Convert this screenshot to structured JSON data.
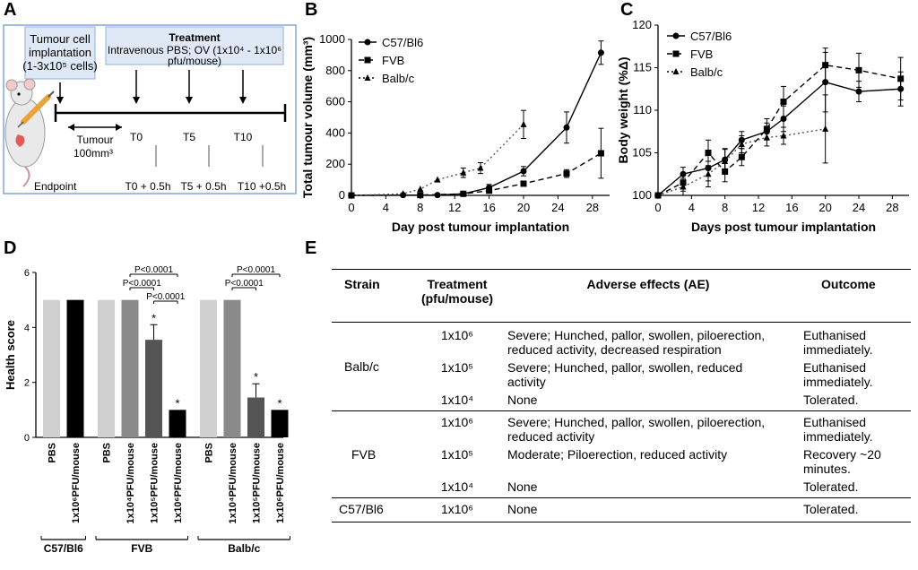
{
  "panels": {
    "a": "A",
    "b": "B",
    "c": "C",
    "d": "D",
    "e": "E"
  },
  "panel_a": {
    "implant_line1": "Tumour cell",
    "implant_line2": "implantation",
    "implant_line3": "(1-3x10⁵ cells)",
    "treat_title": "Treatment",
    "treat_line1": "Intravenous PBS; OV (1x10⁴ - 1x10⁶",
    "treat_line2": "pfu/mouse)",
    "tumour_line1": "Tumour",
    "tumour_line2": "100mm³",
    "t0": "T0",
    "t5": "T5",
    "t10": "T10",
    "t0b": "T0 + 0.5h",
    "t5b": "T5 + 0.5h",
    "t10b": "T10 +0.5h",
    "endpoint": "Endpoint"
  },
  "colors": {
    "box_fill": "#dfe9f5",
    "box_border": "#8fb0d8",
    "frame": "#7fa8d8",
    "mouse": "#e9e9e9",
    "syringe": "#e8a33a",
    "bar_light": "#d0d0d0",
    "bar_mid": "#8a8a8a",
    "bar_dark": "#555555",
    "bar_black": "#000000"
  },
  "chart_data": [
    {
      "id": "B",
      "type": "line",
      "title": "",
      "xlabel": "Day post tumour implantation",
      "ylabel": "Total tumour volume (mm³)",
      "xlim": [
        0,
        30
      ],
      "ylim": [
        0,
        1000
      ],
      "xticks": [
        0,
        4,
        8,
        12,
        16,
        20,
        24,
        28
      ],
      "yticks": [
        0,
        200,
        400,
        600,
        800,
        1000
      ],
      "legend_position": "top-left",
      "series": [
        {
          "name": "C57/Bl6",
          "style": "solid",
          "marker": "circle",
          "x": [
            0,
            6,
            10,
            13,
            16,
            20,
            25,
            29
          ],
          "y": [
            0,
            2,
            2,
            10,
            50,
            155,
            435,
            915
          ],
          "err": [
            0,
            0,
            0,
            0,
            20,
            30,
            100,
            75
          ]
        },
        {
          "name": "FVB",
          "style": "dashed",
          "marker": "square",
          "x": [
            0,
            8,
            13,
            16,
            20,
            25,
            29
          ],
          "y": [
            0,
            2,
            10,
            30,
            75,
            140,
            270
          ],
          "err": [
            0,
            0,
            0,
            0,
            10,
            25,
            160
          ]
        },
        {
          "name": "Balb/c",
          "style": "dotted",
          "marker": "triangle",
          "x": [
            0,
            6,
            8,
            10,
            13,
            15,
            20
          ],
          "y": [
            0,
            10,
            40,
            100,
            145,
            175,
            455
          ],
          "err": [
            0,
            0,
            0,
            0,
            30,
            35,
            90
          ]
        }
      ]
    },
    {
      "id": "C",
      "type": "line",
      "title": "",
      "xlabel": "Days post tumour implantation",
      "ylabel": "Body weight (%Δ)",
      "xlim": [
        0,
        30
      ],
      "ylim": [
        100,
        120
      ],
      "xticks": [
        0,
        4,
        8,
        12,
        16,
        20,
        24,
        28
      ],
      "yticks": [
        100,
        105,
        110,
        115,
        120
      ],
      "legend_position": "top-left",
      "series": [
        {
          "name": "C57/Bl6",
          "style": "solid",
          "marker": "circle",
          "x": [
            0,
            3,
            6,
            8,
            10,
            13,
            15,
            20,
            24,
            29
          ],
          "y": [
            100,
            102.5,
            103.2,
            104.2,
            106.5,
            107.5,
            109,
            113.3,
            112.2,
            112.5
          ],
          "err": [
            0,
            0.8,
            1.5,
            1.2,
            1,
            1,
            1.5,
            3.5,
            1.2,
            2
          ]
        },
        {
          "name": "FVB",
          "style": "dashed",
          "marker": "square",
          "x": [
            0,
            3,
            6,
            8,
            10,
            13,
            15,
            20,
            24,
            29
          ],
          "y": [
            100,
            101.5,
            105,
            102.8,
            104.5,
            107.8,
            111,
            115.3,
            114.7,
            113.7
          ],
          "err": [
            0,
            1,
            1.5,
            1.2,
            1,
            1.2,
            1.8,
            2,
            2,
            2.5
          ]
        },
        {
          "name": "Balb/c",
          "style": "dotted",
          "marker": "triangle",
          "x": [
            0,
            3,
            6,
            8,
            10,
            13,
            15,
            20
          ],
          "y": [
            100,
            101,
            102.5,
            104,
            106,
            106.8,
            107,
            107.8
          ],
          "err": [
            0,
            1,
            1.5,
            1.5,
            1,
            1,
            1,
            4
          ]
        }
      ]
    },
    {
      "id": "D",
      "type": "bar",
      "ylabel": "Health score",
      "ylim": [
        0,
        6
      ],
      "yticks": [
        0,
        2,
        4,
        6
      ],
      "categories": [
        "PBS",
        "1x10⁶PFU/mouse",
        "PBS",
        "1x10⁴PFU/mouse",
        "1x10⁵PFU/mouse",
        "1x10⁶PFU/mouse",
        "PBS",
        "1x10⁴PFU/mouse",
        "1x10⁵PFU/mouse",
        "1x10⁶PFU/mouse"
      ],
      "values": [
        5,
        5,
        5,
        5,
        3.55,
        1,
        5,
        5,
        1.45,
        1
      ],
      "errors": [
        0,
        0,
        0,
        0,
        0.55,
        0,
        0,
        0,
        0.5,
        0
      ],
      "bar_colors": [
        "#d0d0d0",
        "#000000",
        "#d0d0d0",
        "#8a8a8a",
        "#555555",
        "#000000",
        "#d0d0d0",
        "#8a8a8a",
        "#555555",
        "#000000"
      ],
      "stars": [
        false,
        false,
        false,
        false,
        true,
        true,
        false,
        false,
        true,
        true
      ],
      "groups": [
        {
          "name": "C57/Bl6",
          "from": 0,
          "to": 1
        },
        {
          "name": "FVB",
          "from": 2,
          "to": 5
        },
        {
          "name": "Balb/c",
          "from": 6,
          "to": 9
        }
      ],
      "annotations": [
        {
          "text": "P<0.0001",
          "from": 3,
          "to": 5,
          "level": 0
        },
        {
          "text": "P<0.0001",
          "from": 3,
          "to": 4,
          "level": 1
        },
        {
          "text": "P<0.0001",
          "from": 4,
          "to": 5,
          "level": 2
        },
        {
          "text": "P<0.0001",
          "from": 7,
          "to": 9,
          "level": 0
        },
        {
          "text": "P<0.0001",
          "from": 7,
          "to": 8,
          "level": 1
        }
      ]
    }
  ],
  "table": {
    "headers": {
      "strain": "Strain",
      "treatment1": "Treatment",
      "treatment2": "(pfu/mouse)",
      "ae": "Adverse effects (AE)",
      "outcome": "Outcome"
    },
    "rows": [
      {
        "strain": "Balb/c",
        "dose": "1x10⁶",
        "ae1": "Severe; Hunched, pallor, swollen, piloerection,",
        "ae2": "reduced activity, decreased respiration",
        "out1": "Euthanised",
        "out2": "immediately."
      },
      {
        "strain": "",
        "dose": "1x10⁵",
        "ae1": "Severe; Hunched, pallor, swollen, reduced",
        "ae2": "activity",
        "out1": "Euthanised",
        "out2": "immediately."
      },
      {
        "strain": "",
        "dose": "1x10⁴",
        "ae1": "None",
        "ae2": "",
        "out1": "Tolerated.",
        "out2": ""
      },
      {
        "strain": "FVB",
        "dose": "1x10⁶",
        "ae1": "Severe; Hunched, pallor, swollen, piloerection,",
        "ae2": "reduced activity",
        "out1": "Euthanised",
        "out2": "immediately."
      },
      {
        "strain": "",
        "dose": "1x10⁵",
        "ae1": "Moderate; Piloerection, reduced activity",
        "ae2": "",
        "out1": "Recovery ~20",
        "out2": "minutes."
      },
      {
        "strain": "",
        "dose": "1x10⁴",
        "ae1": "None",
        "ae2": "",
        "out1": "Tolerated.",
        "out2": ""
      },
      {
        "strain": "C57/Bl6",
        "dose": "1x10⁶",
        "ae1": "None",
        "ae2": "",
        "out1": "Tolerated.",
        "out2": ""
      }
    ]
  }
}
